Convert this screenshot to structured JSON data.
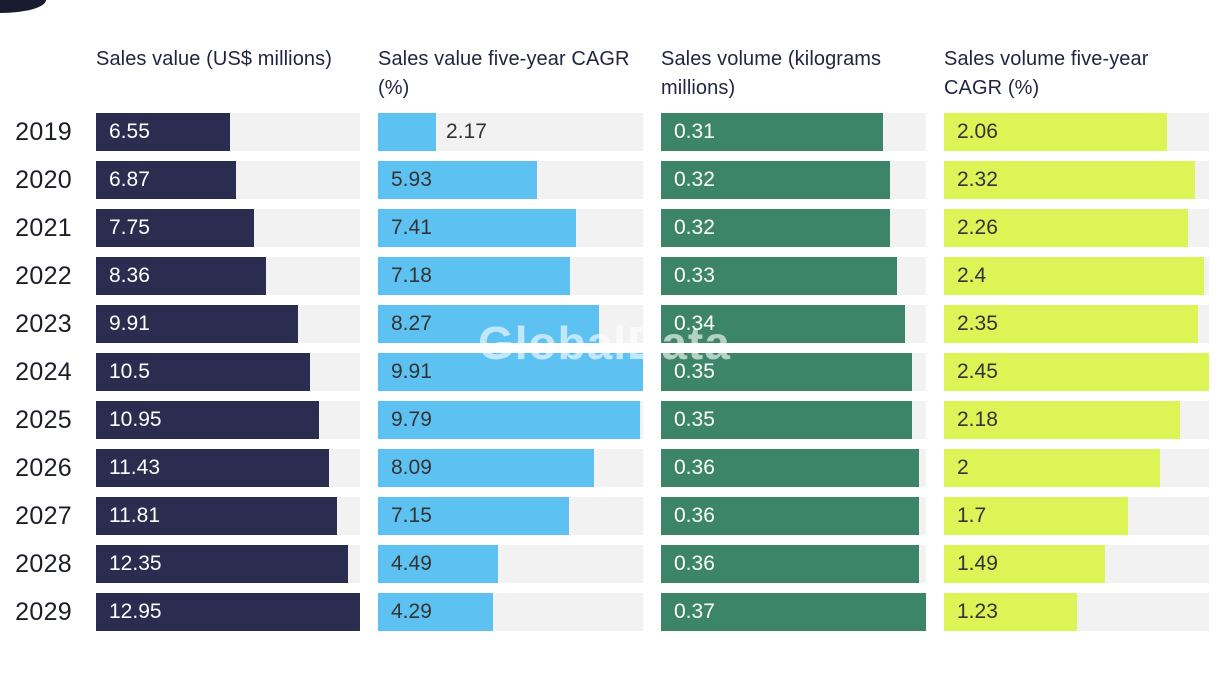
{
  "watermark": "GlobalData",
  "colors": {
    "navy": "#2b2d50",
    "sky_blue": "#5dc2f2",
    "green": "#3d8568",
    "lime": "#ddf457",
    "track": "#f2f2f2",
    "header_text": "#1f2440",
    "dark_label": "#333333",
    "light_label": "#ffffff"
  },
  "chart_data": {
    "type": "bar",
    "orientation": "horizontal",
    "layout": "four side-by-side bar panels sharing one year axis; each bar scaled to panel max; value labels on bars; light gray full-width tracks behind bars; no gridlines; no legend",
    "categories": [
      "2019",
      "2020",
      "2021",
      "2022",
      "2023",
      "2024",
      "2025",
      "2026",
      "2027",
      "2028",
      "2029"
    ],
    "series": [
      {
        "name": "Sales value",
        "header": "Sales value (US$ millions)",
        "color": "#2b2d50",
        "label_color": "#ffffff",
        "axis_max": 12.95,
        "values": [
          "6.55",
          "6.87",
          "7.75",
          "8.36",
          "9.91",
          "10.5",
          "10.95",
          "11.43",
          "11.81",
          "12.35",
          "12.95"
        ]
      },
      {
        "name": "Sales value five-year CAGR",
        "header": "Sales value five-year CAGR (%)",
        "color": "#5dc2f2",
        "label_color": "#333333",
        "axis_max": 9.91,
        "values": [
          "2.17",
          "5.93",
          "7.41",
          "7.18",
          "8.27",
          "9.91",
          "9.79",
          "8.09",
          "7.15",
          "4.49",
          "4.29"
        ]
      },
      {
        "name": "Sales volume",
        "header": "Sales volume (kilograms millions)",
        "color": "#3d8568",
        "label_color": "#ffffff",
        "axis_max": 0.37,
        "values": [
          "0.31",
          "0.32",
          "0.32",
          "0.33",
          "0.34",
          "0.35",
          "0.35",
          "0.36",
          "0.36",
          "0.36",
          "0.37"
        ]
      },
      {
        "name": "Sales volume five-year CAGR",
        "header": "Sales volume five-year CAGR (%)",
        "color": "#ddf457",
        "label_color": "#333333",
        "axis_max": 2.45,
        "values": [
          "2.06",
          "2.32",
          "2.26",
          "2.4",
          "2.35",
          "2.45",
          "2.18",
          "2",
          "1.7",
          "1.49",
          "1.23"
        ]
      }
    ]
  }
}
